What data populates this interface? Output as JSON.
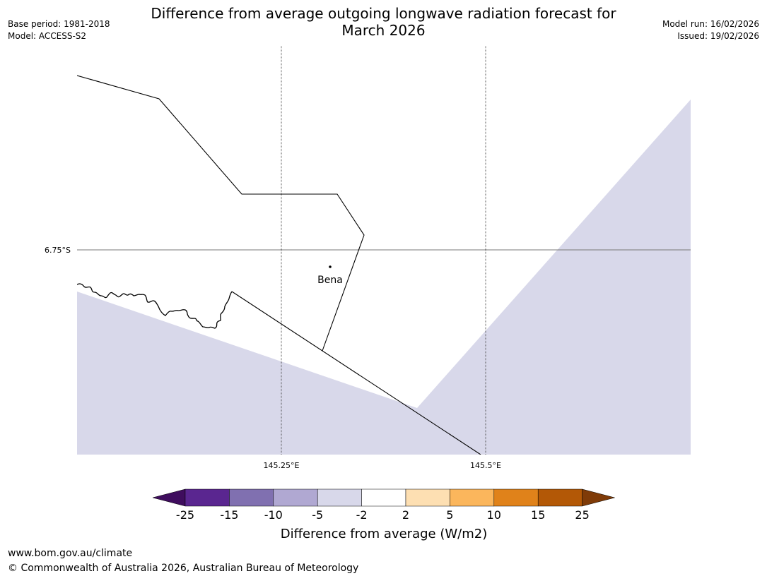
{
  "header": {
    "title_line1": "Difference from average outgoing longwave radiation forecast for",
    "title_line2": "March 2026",
    "base_period": "Base period: 1981-2018",
    "model": "Model: ACCESS-S2",
    "model_run": "Model run: 16/02/2026",
    "issued": "Issued: 19/02/2026"
  },
  "map": {
    "lat_label": "6.75°S",
    "lon_labels": [
      "145.25°E",
      "145.5°E"
    ],
    "place_label": "Bena",
    "shaded_category": "-5 to -2",
    "shade_color": "#d8d8ea",
    "land_color": "#ffffff"
  },
  "colorbar": {
    "label": "Difference from average (W/m2)",
    "ticks": [
      "-25",
      "-15",
      "-10",
      "-5",
      "-2",
      "2",
      "5",
      "10",
      "15",
      "25"
    ],
    "colors": [
      "#3f0d5e",
      "#5a2690",
      "#8070b0",
      "#b0a8d2",
      "#d8d8ea",
      "#ffffff",
      "#fddfb2",
      "#fbb65c",
      "#e0821a",
      "#b35806",
      "#7f3b08"
    ]
  },
  "footer": {
    "url": "www.bom.gov.au/climate",
    "copyright": "© Commonwealth of Australia 2026, Australian Bureau of Meteorology"
  }
}
